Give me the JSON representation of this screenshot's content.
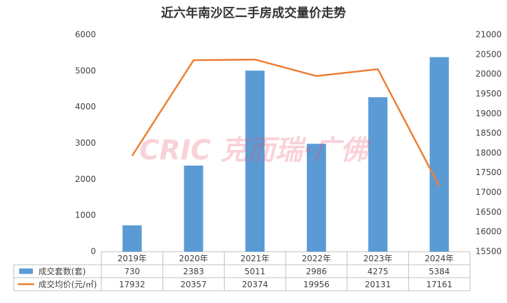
{
  "chart_data": {
    "type": "bar",
    "title": "近六年南沙区二手房成交量价走势",
    "watermark": "CRIC 克而瑞·广佛",
    "categories": [
      "2019年",
      "2020年",
      "2021年",
      "2022年",
      "2023年",
      "2024年"
    ],
    "series": [
      {
        "name": "成交套数(套)",
        "type": "bar",
        "color": "#5b9bd5",
        "values": [
          730,
          2383,
          5011,
          2986,
          4275,
          5384
        ]
      },
      {
        "name": "成交均价(元/㎡)",
        "type": "line",
        "axis": "y2",
        "color": "#ed7d31",
        "values": [
          17932,
          20357,
          20374,
          19956,
          20131,
          17161
        ]
      }
    ],
    "ylim": [
      0,
      6000
    ],
    "yticks": [
      0,
      1000,
      2000,
      3000,
      4000,
      5000,
      6000
    ],
    "y2lim": [
      15500,
      21000
    ],
    "y2ticks": [
      15500,
      16000,
      16500,
      17000,
      17500,
      18000,
      18500,
      19000,
      19500,
      20000,
      20500,
      21000
    ],
    "grid": false
  }
}
